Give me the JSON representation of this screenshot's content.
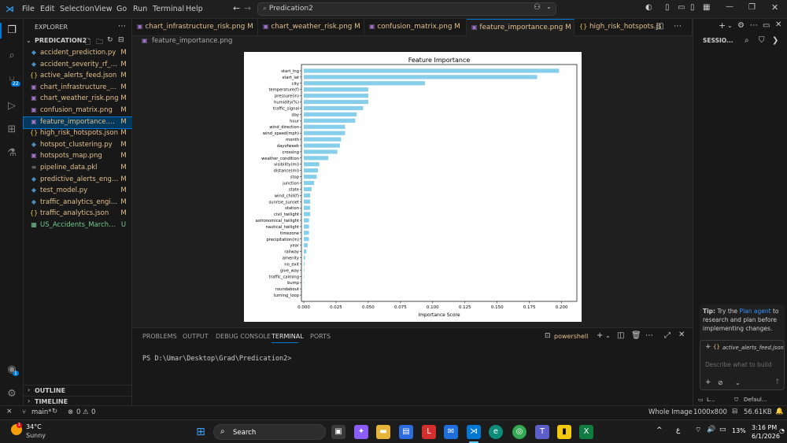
{
  "menu": [
    "File",
    "Edit",
    "Selection",
    "View",
    "Go",
    "Run",
    "Terminal",
    "Help"
  ],
  "search_text": "Predication2",
  "explorer": {
    "header": "EXPLORER",
    "root": "PREDICATION2",
    "files": [
      {
        "icon": "python",
        "name": "accident_prediction.py",
        "status": "M"
      },
      {
        "icon": "python",
        "name": "accident_severity_rf_mo...",
        "status": "M"
      },
      {
        "icon": "json",
        "name": "active_alerts_feed.json",
        "status": "M"
      },
      {
        "icon": "image",
        "name": "chart_infrastructure_risk...",
        "status": "M"
      },
      {
        "icon": "image",
        "name": "chart_weather_risk.png",
        "status": "M"
      },
      {
        "icon": "image",
        "name": "confusion_matrix.png",
        "status": "M"
      },
      {
        "icon": "image",
        "name": "feature_importance.png",
        "status": "M",
        "selected": true
      },
      {
        "icon": "json",
        "name": "high_risk_hotspots.json",
        "status": "M"
      },
      {
        "icon": "python",
        "name": "hotspot_clustering.py",
        "status": "M"
      },
      {
        "icon": "image",
        "name": "hotspots_map.png",
        "status": "M"
      },
      {
        "icon": "pickle",
        "name": "pipeline_data.pkl",
        "status": "M"
      },
      {
        "icon": "python",
        "name": "predictive_alerts_engine...",
        "status": "M"
      },
      {
        "icon": "python",
        "name": "test_model.py",
        "status": "M"
      },
      {
        "icon": "python",
        "name": "traffic_analytics_engine...",
        "status": "M"
      },
      {
        "icon": "json",
        "name": "traffic_analytics.json",
        "status": "M"
      },
      {
        "icon": "csv",
        "name": "US_Accidents_March23...",
        "status": "U"
      }
    ],
    "outline": "OUTLINE",
    "timeline": "TIMELINE"
  },
  "tabs": [
    {
      "name": "chart_infrastructure_risk.png",
      "status": "M"
    },
    {
      "name": "chart_weather_risk.png",
      "status": "M"
    },
    {
      "name": "confusion_matrix.png",
      "status": "M"
    },
    {
      "name": "feature_importance.png",
      "status": "M",
      "active": true
    },
    {
      "name": "high_risk_hotspots.js",
      "status": ""
    }
  ],
  "breadcrumb": "feature_importance.png",
  "chart_data": {
    "type": "bar",
    "orientation": "horizontal",
    "title": "Feature Importance",
    "xlabel": "Importance Score",
    "ylabel": "",
    "xlim": [
      0,
      0.21
    ],
    "xticks": [
      "0.000",
      "0.025",
      "0.050",
      "0.075",
      "0.100",
      "0.125",
      "0.150",
      "0.175",
      "0.200"
    ],
    "bar_color": "#87ceeb",
    "categories": [
      "start_lng",
      "start_lat",
      "city",
      "temperature(f)",
      "pressure(in)",
      "humidity(%)",
      "traffic_signal",
      "day",
      "hour",
      "wind_direction",
      "wind_speed(mph)",
      "month",
      "dayofweek",
      "crossing",
      "weather_condition",
      "visibility(mi)",
      "distance(mi)",
      "stop",
      "junction",
      "state",
      "wind_chill(f)",
      "sunrise_sunset",
      "station",
      "civil_twilight",
      "astronomical_twilight",
      "nautical_twilight",
      "timezone",
      "precipitation(in)",
      "year",
      "railway",
      "amenity",
      "no_exit",
      "give_way",
      "traffic_calming",
      "bump",
      "roundabout",
      "turning_loop"
    ],
    "values": [
      0.198,
      0.181,
      0.094,
      0.05,
      0.05,
      0.05,
      0.046,
      0.041,
      0.04,
      0.032,
      0.032,
      0.029,
      0.028,
      0.026,
      0.019,
      0.012,
      0.011,
      0.01,
      0.008,
      0.006,
      0.005,
      0.005,
      0.005,
      0.005,
      0.004,
      0.004,
      0.004,
      0.004,
      0.003,
      0.002,
      0.001,
      0.0005,
      0.0004,
      0.0003,
      0.0002,
      0.0001,
      0.0
    ]
  },
  "panel": {
    "tabs": [
      "PROBLEMS",
      "OUTPUT",
      "DEBUG CONSOLE",
      "TERMINAL",
      "PORTS"
    ],
    "active_tab": "TERMINAL",
    "shell": "powershell",
    "prompt": "PS D:\\Umar\\Desktop\\Grad\\Predication2>"
  },
  "right_panel": {
    "title": "SESSIO...",
    "tip_label": "Tip:",
    "tip_text_1": "Try the",
    "tip_link": "Plan agent",
    "tip_text_2": "to research and plan before implementing changes.",
    "attachment": "active_alerts_feed.json",
    "chat_placeholder": "Describe what to build",
    "footer_left": "L...",
    "footer_right": "Defaul..."
  },
  "status": {
    "branch": "main*",
    "errors": "0",
    "warnings": "0",
    "view": "Whole Image",
    "dimensions": "1000x800",
    "size": "56.61KB"
  },
  "taskbar": {
    "temperature": "34°C",
    "weather": "Sunny",
    "search": "Search",
    "battery": "13%",
    "time": "3:16 PM",
    "date": "6/1/2026",
    "lang": "ع"
  },
  "badges": {
    "scm": "22",
    "account": "1"
  },
  "colors": {
    "accent": "#0078d4",
    "modified": "#e2c08d",
    "untracked": "#73c991"
  }
}
